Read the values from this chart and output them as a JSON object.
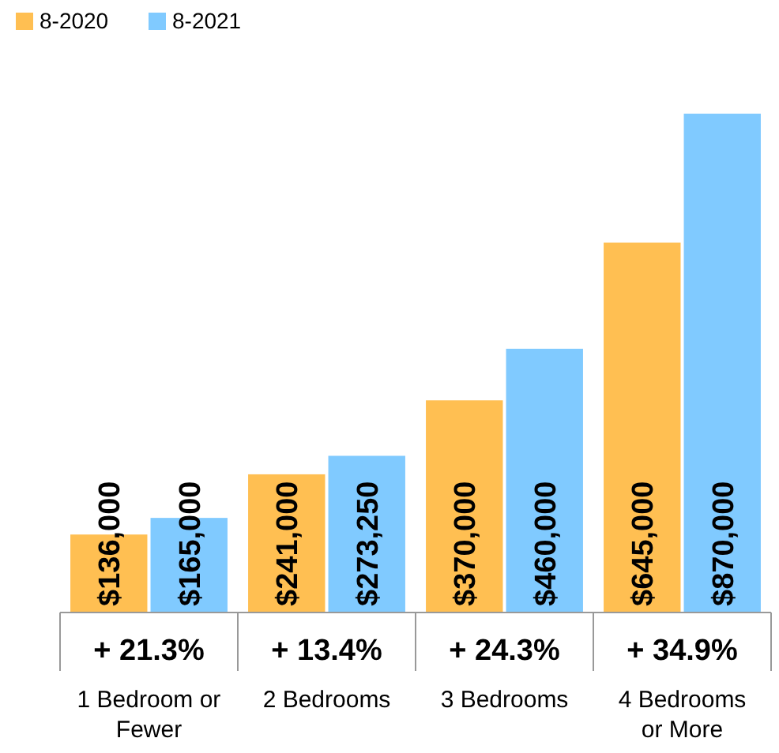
{
  "chart_data": {
    "type": "bar",
    "categories": [
      "1 Bedroom or Fewer",
      "2 Bedrooms",
      "3 Bedrooms",
      "4 Bedrooms or More"
    ],
    "series": [
      {
        "name": "8-2020",
        "color": "#ffbf52",
        "values": [
          136000,
          241000,
          370000,
          645000
        ],
        "value_labels": [
          "$136,000",
          "$241,000",
          "$370,000",
          "$645,000"
        ]
      },
      {
        "name": "8-2021",
        "color": "#80caff",
        "values": [
          165000,
          273250,
          460000,
          870000
        ],
        "value_labels": [
          "$165,000",
          "$273,250",
          "$460,000",
          "$870,000"
        ]
      }
    ],
    "ylim": [
      0,
      870000
    ],
    "tick_labels": "x",
    "legend": "top left",
    "annotations": [
      "+ 21.3%",
      "+ 13.4%",
      "+ 24.3%",
      "+ 34.9%"
    ]
  }
}
